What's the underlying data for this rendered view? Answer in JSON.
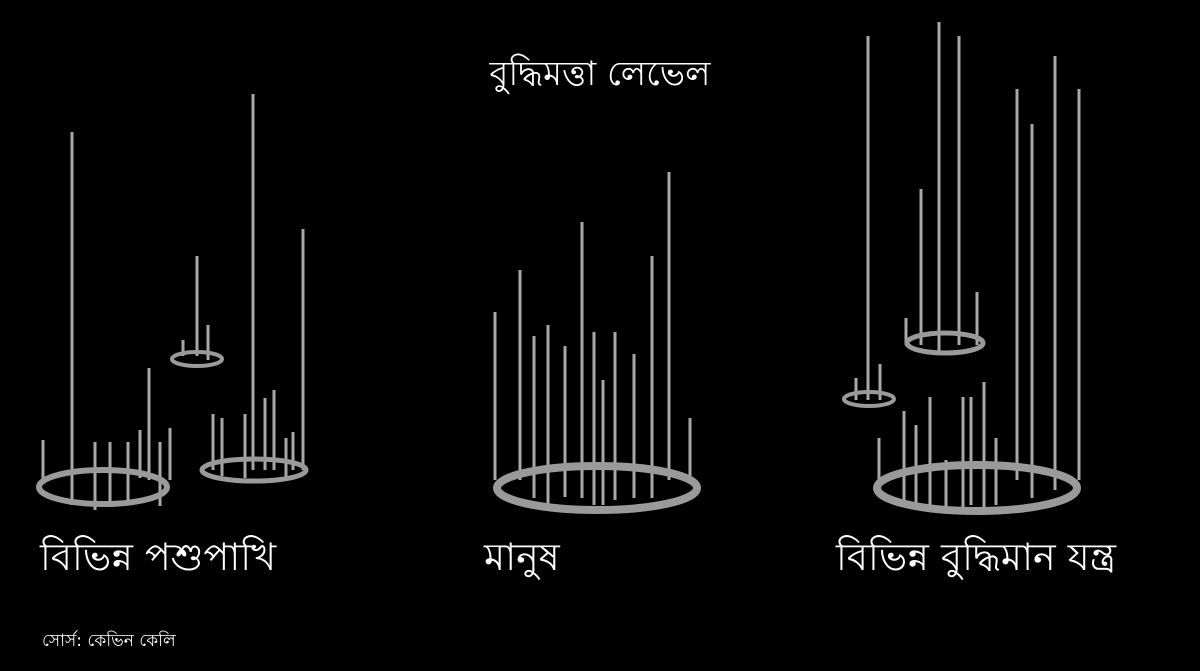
{
  "title": "বুদ্ধিমত্তা লেভেল",
  "groups": [
    {
      "label": "বিভিন্ন পশুপাখি"
    },
    {
      "label": "মানুষ"
    },
    {
      "label": "বিভিন্ন বুদ্ধিমান যন্ত্র"
    }
  ],
  "source": "সোর্স: কেভিন কেলি",
  "colors": {
    "background": "#000000",
    "ring": "#9a9a9a",
    "pole": "#a8a8a8",
    "text": "#ffffff"
  }
}
